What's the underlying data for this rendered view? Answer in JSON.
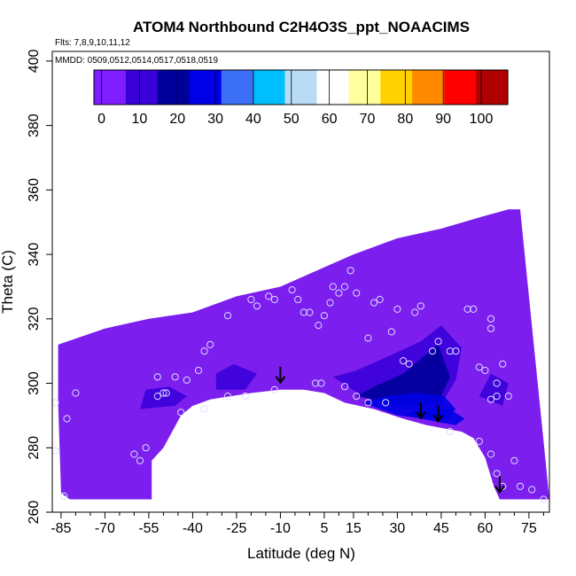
{
  "chart_data": {
    "type": "heatmap",
    "title": "ATOM4 Northbound C2H4O3S_ppt_NOAACIMS",
    "flights_note": "Flts: 7,8,9,10,11,12",
    "dates_note": "MMDD: 0509,0512,0514,0517,0518,0519",
    "xlabel": "Latitude (deg N)",
    "ylabel": "Theta (C)",
    "xlim": [
      -88,
      82
    ],
    "ylim": [
      260,
      403
    ],
    "x_ticks": [
      -85,
      -70,
      -55,
      -40,
      -25,
      -10,
      5,
      15,
      30,
      45,
      60,
      75
    ],
    "y_ticks": [
      260,
      280,
      300,
      320,
      340,
      360,
      380,
      400
    ],
    "colorbar": {
      "ticks": [
        0,
        10,
        20,
        30,
        40,
        50,
        60,
        70,
        80,
        90,
        100
      ],
      "range": [
        -2,
        107
      ],
      "colors": [
        "#7f1dff",
        "#3a00d9",
        "#00009a",
        "#0000e6",
        "#3b6ff5",
        "#00bfff",
        "#b8dcf5",
        "#ffffff",
        "#ffff9e",
        "#ffd100",
        "#ff8a00",
        "#ff0000",
        "#b00000"
      ]
    },
    "fill_color": "#7c1fee",
    "domain_top": [
      [
        -86,
        312
      ],
      [
        -70,
        317
      ],
      [
        -55,
        320
      ],
      [
        -40,
        322
      ],
      [
        -25,
        327
      ],
      [
        -10,
        330
      ],
      [
        5,
        336
      ],
      [
        15,
        340
      ],
      [
        30,
        345
      ],
      [
        45,
        348
      ],
      [
        60,
        352
      ],
      [
        68,
        354
      ],
      [
        72,
        354
      ],
      [
        82,
        264
      ]
    ],
    "domain_bottom": [
      [
        -86,
        294
      ],
      [
        -85,
        266
      ],
      [
        -82,
        264
      ],
      [
        -54,
        264
      ],
      [
        -54,
        276
      ],
      [
        -50,
        280
      ],
      [
        -44,
        290
      ],
      [
        -40,
        293
      ],
      [
        -34,
        295
      ],
      [
        -20,
        297
      ],
      [
        -10,
        298
      ],
      [
        -2,
        298
      ],
      [
        5,
        297
      ],
      [
        12,
        294
      ],
      [
        22,
        292
      ],
      [
        32,
        289
      ],
      [
        40,
        287
      ],
      [
        46,
        286
      ],
      [
        52,
        285
      ],
      [
        56,
        283
      ],
      [
        60,
        277
      ],
      [
        63,
        268
      ],
      [
        65,
        264
      ],
      [
        82,
        264
      ]
    ],
    "enhanced_regions": [
      {
        "level": 12,
        "points": [
          [
            -58,
            292
          ],
          [
            -46,
            293
          ],
          [
            -42,
            296
          ],
          [
            -48,
            299
          ],
          [
            -56,
            298
          ]
        ]
      },
      {
        "level": 10,
        "points": [
          [
            -32,
            298
          ],
          [
            -22,
            298
          ],
          [
            -18,
            303
          ],
          [
            -26,
            306
          ],
          [
            -32,
            303
          ]
        ]
      },
      {
        "level": 11,
        "points": [
          [
            8,
            302
          ],
          [
            18,
            296
          ],
          [
            32,
            292
          ],
          [
            44,
            292
          ],
          [
            50,
            301
          ],
          [
            52,
            311
          ],
          [
            45,
            318
          ],
          [
            38,
            313
          ],
          [
            26,
            308
          ],
          [
            16,
            304
          ]
        ]
      },
      {
        "level": 18,
        "points": [
          [
            16,
            296
          ],
          [
            32,
            293
          ],
          [
            44,
            294
          ],
          [
            48,
            302
          ],
          [
            44,
            312
          ],
          [
            40,
            309
          ],
          [
            32,
            303
          ],
          [
            22,
            299
          ]
        ]
      },
      {
        "level": 24,
        "points": [
          [
            18,
            294
          ],
          [
            30,
            290
          ],
          [
            40,
            289
          ],
          [
            47,
            289
          ],
          [
            50,
            292
          ],
          [
            46,
            296
          ],
          [
            36,
            297
          ],
          [
            26,
            296
          ]
        ]
      },
      {
        "level": 28,
        "points": [
          [
            32,
            290
          ],
          [
            44,
            288
          ],
          [
            50,
            287
          ],
          [
            53,
            289
          ],
          [
            48,
            292
          ],
          [
            38,
            292
          ]
        ]
      },
      {
        "level": 11,
        "points": [
          [
            58,
            296
          ],
          [
            66,
            293
          ],
          [
            68,
            300
          ],
          [
            62,
            303
          ]
        ]
      }
    ],
    "observations": [
      [
        -87,
        294
      ],
      [
        -87,
        279
      ],
      [
        -83,
        289
      ],
      [
        -80,
        297
      ],
      [
        -52,
        302
      ],
      [
        -52,
        296
      ],
      [
        -50,
        297
      ],
      [
        -49,
        297
      ],
      [
        -46,
        302
      ],
      [
        -42,
        301
      ],
      [
        -38,
        304
      ],
      [
        -36,
        310
      ],
      [
        -34,
        312
      ],
      [
        -28,
        321
      ],
      [
        -20,
        326
      ],
      [
        -18,
        324
      ],
      [
        -14,
        327
      ],
      [
        -12,
        326
      ],
      [
        -6,
        329
      ],
      [
        -4,
        326
      ],
      [
        -2,
        322
      ],
      [
        0,
        322
      ],
      [
        3,
        318
      ],
      [
        5,
        321
      ],
      [
        7,
        325
      ],
      [
        8,
        330
      ],
      [
        10,
        328
      ],
      [
        12,
        330
      ],
      [
        14,
        335
      ],
      [
        16,
        328
      ],
      [
        -22,
        296
      ],
      [
        -12,
        298
      ],
      [
        2,
        300
      ],
      [
        4,
        300
      ],
      [
        12,
        299
      ],
      [
        16,
        296
      ],
      [
        20,
        294
      ],
      [
        26,
        294
      ],
      [
        20,
        314
      ],
      [
        22,
        325
      ],
      [
        24,
        326
      ],
      [
        28,
        316
      ],
      [
        30,
        323
      ],
      [
        32,
        307
      ],
      [
        34,
        306
      ],
      [
        36,
        322
      ],
      [
        38,
        324
      ],
      [
        42,
        310
      ],
      [
        44,
        313
      ],
      [
        48,
        310
      ],
      [
        50,
        310
      ],
      [
        54,
        323
      ],
      [
        56,
        323
      ],
      [
        58,
        305
      ],
      [
        60,
        304
      ],
      [
        62,
        320
      ],
      [
        62,
        317
      ],
      [
        64,
        300
      ],
      [
        66,
        306
      ],
      [
        64,
        296
      ],
      [
        62,
        295
      ],
      [
        68,
        296
      ],
      [
        70,
        276
      ],
      [
        -60,
        278
      ],
      [
        -58,
        276
      ],
      [
        -56,
        280
      ],
      [
        -44,
        291
      ],
      [
        -36,
        292
      ],
      [
        -28,
        296
      ],
      [
        48,
        285
      ],
      [
        58,
        282
      ],
      [
        62,
        278
      ],
      [
        64,
        272
      ],
      [
        66,
        268
      ],
      [
        72,
        268
      ],
      [
        76,
        267
      ],
      [
        80,
        264
      ],
      [
        -84,
        265
      ]
    ],
    "arrows": [
      -10,
      38,
      44,
      65
    ]
  }
}
